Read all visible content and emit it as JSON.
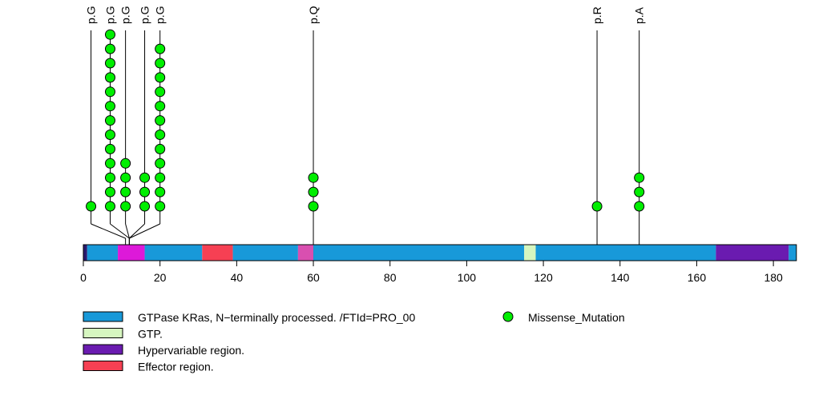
{
  "chart_data": {
    "type": "lollipop",
    "protein_length": 186,
    "xlim": [
      0,
      186
    ],
    "x_ticks": [
      0,
      20,
      40,
      60,
      80,
      100,
      120,
      140,
      160,
      180
    ],
    "domains": [
      {
        "start": 0,
        "end": 1,
        "color": "#2a1a6e"
      },
      {
        "start": 1,
        "end": 9,
        "color": "#1899d9"
      },
      {
        "start": 9,
        "end": 16,
        "color": "#dd19d9"
      },
      {
        "start": 16,
        "end": 31,
        "color": "#1899d9"
      },
      {
        "start": 31,
        "end": 39,
        "color": "#f64053"
      },
      {
        "start": 39,
        "end": 56,
        "color": "#1899d9"
      },
      {
        "start": 56,
        "end": 60,
        "color": "#d94fb0"
      },
      {
        "start": 60,
        "end": 115,
        "color": "#1899d9"
      },
      {
        "start": 115,
        "end": 118,
        "color": "#d6f6c0"
      },
      {
        "start": 118,
        "end": 165,
        "color": "#1899d9"
      },
      {
        "start": 165,
        "end": 184,
        "color": "#6a1bb0"
      },
      {
        "start": 184,
        "end": 186,
        "color": "#1899d9"
      }
    ],
    "mutations": [
      {
        "label": "p.G",
        "position": 2,
        "count": 1
      },
      {
        "label": "p.G",
        "position": 7,
        "count": 13
      },
      {
        "label": "p.G",
        "position": 11,
        "count": 4
      },
      {
        "label": "p.G",
        "position": 16,
        "count": 3
      },
      {
        "label": "p.G",
        "position": 20,
        "count": 12
      },
      {
        "label": "p.Q",
        "position": 60,
        "count": 3
      },
      {
        "label": "p.R",
        "position": 134,
        "count": 1
      },
      {
        "label": "p.A",
        "position": 145,
        "count": 3
      }
    ],
    "anchor_positions": [
      11,
      12,
      12,
      12,
      12
    ],
    "legend": [
      {
        "label": "GTPase KRas, N−terminally processed. /FTId=PRO_00",
        "color": "#1899d9",
        "kind": "box"
      },
      {
        "label": "GTP.",
        "color": "#d6f6c0",
        "kind": "box"
      },
      {
        "label": "Hypervariable region.",
        "color": "#6a1bb0",
        "kind": "box"
      },
      {
        "label": "Effector region.",
        "color": "#f64053",
        "kind": "box"
      },
      {
        "label": "Missense_Mutation",
        "color": "#00ee00",
        "kind": "dot"
      }
    ]
  }
}
